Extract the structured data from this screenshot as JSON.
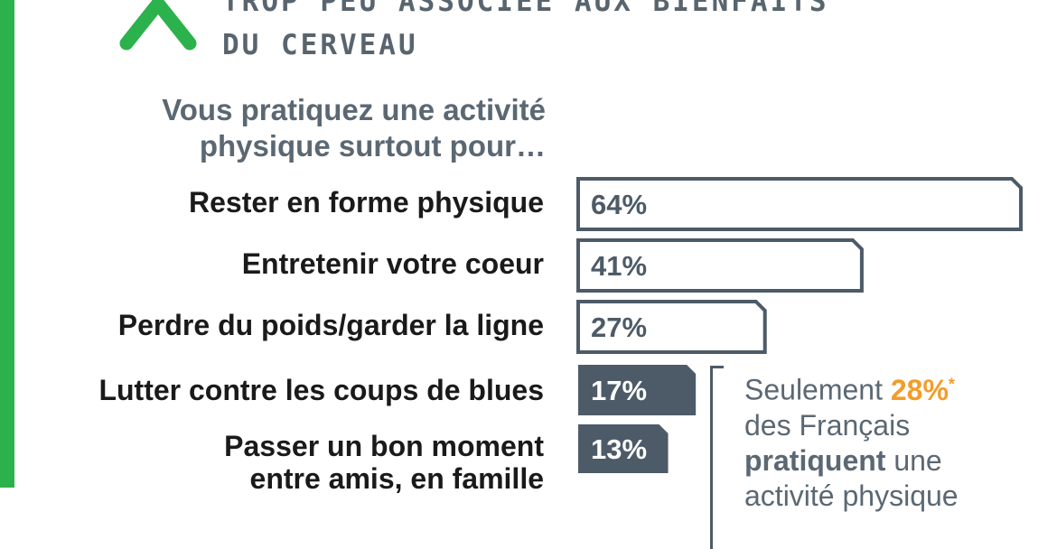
{
  "heading": {
    "line1": "TROP PEU ASSOCIÉE AUX BIENFAITS",
    "line2": "DU CERVEAU"
  },
  "question": {
    "line1": "Vous pratiquez une activité",
    "line2": "physique surtout pour…"
  },
  "chart_data": {
    "type": "bar",
    "orientation": "horizontal",
    "title": "",
    "categories": [
      "Rester en forme physique",
      "Entretenir votre coeur",
      "Perdre du poids/garder la ligne",
      "Lutter contre les coups de blues",
      "Passer un bon moment entre amis, en famille"
    ],
    "category_lines": [
      [
        "Rester en forme physique"
      ],
      [
        "Entretenir votre coeur"
      ],
      [
        "Perdre du poids/garder la ligne"
      ],
      [
        "Lutter contre les coups de blues"
      ],
      [
        "Passer un bon moment",
        "entre amis, en famille"
      ]
    ],
    "values": [
      64,
      41,
      27,
      17,
      13
    ],
    "value_labels": [
      "64%",
      "41%",
      "27%",
      "17%",
      "13%"
    ],
    "bar_styles": [
      "outline",
      "outline",
      "outline",
      "filled",
      "filled"
    ],
    "xlim": [
      0,
      64
    ],
    "grid": false,
    "colors": {
      "outline": "#4d5b68",
      "filled": "#4d5b68",
      "accent": "#f39c2a",
      "brand_green": "#2bb24c"
    }
  },
  "note": {
    "part1": "Seulement ",
    "highlight": "28%",
    "star": "*",
    "part2": "des Français",
    "bold": "pratiquent",
    "part3": " une",
    "part4": "activité physique"
  }
}
